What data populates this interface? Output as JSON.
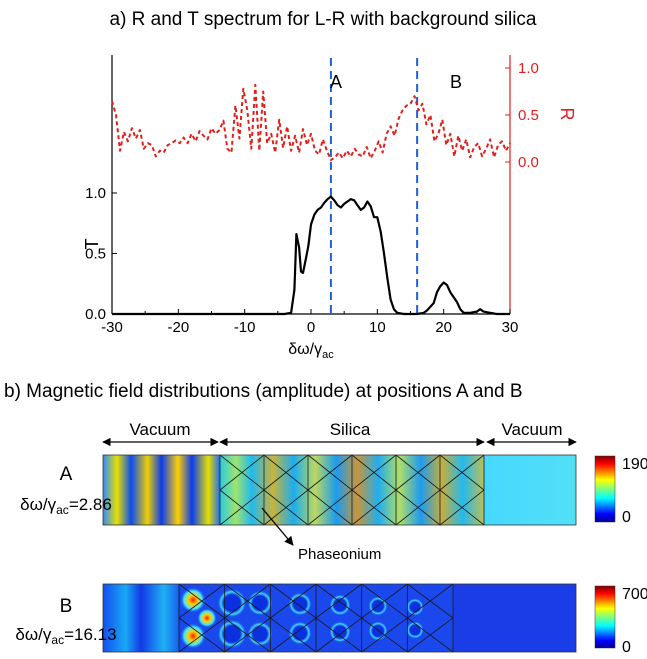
{
  "panel_a": {
    "title": "a) R and T spectrum for L-R with background silica",
    "marker_labels": [
      "A",
      "B"
    ],
    "chart_data": {
      "type": "line",
      "xlabel": "δω/γ",
      "xlabel_sub": "ac",
      "xlim": [
        -30,
        30
      ],
      "x_ticks": [
        "-30",
        "-20",
        "-10",
        "0",
        "10",
        "20",
        "30"
      ],
      "left_axis": {
        "label": "T",
        "ylim": [
          0,
          1.25
        ],
        "ticks": [
          "0.0",
          "0.5",
          "1.0"
        ],
        "color": "#000000"
      },
      "right_axis": {
        "label": "R",
        "ylim": [
          0,
          1
        ],
        "ticks": [
          "0.0",
          "0.5",
          "1.0"
        ],
        "color": "#e0201b"
      },
      "markers": [
        {
          "label": "A",
          "x": 3,
          "color": "#1f5fd6"
        },
        {
          "label": "B",
          "x": 16,
          "color": "#1f5fd6"
        }
      ],
      "series": [
        {
          "axis": "right",
          "color": "#e0201b",
          "style": "dashed",
          "x": [
            -30,
            -29.4,
            -28.8,
            -28.2,
            -27.6,
            -27.0,
            -26.4,
            -25.8,
            -25.2,
            -24.6,
            -24.0,
            -23.4,
            -22.8,
            -22.2,
            -21.6,
            -21.0,
            -20.4,
            -19.8,
            -19.2,
            -18.6,
            -18.0,
            -17.4,
            -16.8,
            -16.2,
            -15.6,
            -15.0,
            -14.4,
            -13.8,
            -13.2,
            -12.6,
            -12.0,
            -11.4,
            -10.8,
            -10.2,
            -9.6,
            -9.0,
            -8.4,
            -7.8,
            -7.2,
            -6.6,
            -6.0,
            -5.4,
            -4.8,
            -4.2,
            -3.6,
            -3.0,
            -2.4,
            -1.8,
            -1.2,
            -0.6,
            0,
            0.6,
            1.2,
            1.8,
            2.4,
            3.0,
            3.6,
            4.2,
            4.8,
            5.4,
            6.0,
            6.6,
            7.2,
            7.8,
            8.4,
            9.0,
            9.6,
            10.2,
            10.8,
            11.4,
            12.0,
            12.6,
            13.2,
            13.8,
            14.4,
            15.0,
            15.6,
            16.2,
            16.8,
            17.4,
            18.0,
            18.6,
            19.2,
            19.8,
            20.4,
            21.0,
            21.6,
            22.2,
            22.8,
            23.4,
            24.0,
            24.6,
            25.2,
            25.8,
            26.4,
            27.0,
            27.6,
            28.2,
            28.8,
            29.4,
            30
          ],
          "y": [
            0.65,
            0.5,
            0.12,
            0.32,
            0.22,
            0.36,
            0.25,
            0.34,
            0.14,
            0.2,
            0.18,
            0.06,
            0.12,
            0.1,
            0.18,
            0.2,
            0.23,
            0.2,
            0.26,
            0.2,
            0.3,
            0.22,
            0.33,
            0.28,
            0.24,
            0.36,
            0.3,
            0.34,
            0.44,
            0.14,
            0.1,
            0.6,
            0.25,
            0.78,
            0.55,
            0.14,
            0.82,
            0.12,
            0.75,
            0.2,
            0.3,
            0.1,
            0.45,
            0.15,
            0.38,
            0.12,
            0.28,
            0.1,
            0.35,
            0.18,
            0.3,
            0.12,
            0.08,
            0.24,
            0.12,
            0.02,
            0.05,
            0.1,
            0.04,
            0.12,
            0.06,
            0.14,
            0.08,
            0.06,
            0.16,
            0.04,
            0.12,
            0.22,
            0.1,
            0.3,
            0.38,
            0.28,
            0.46,
            0.55,
            0.6,
            0.62,
            0.7,
            0.55,
            0.62,
            0.4,
            0.5,
            0.22,
            0.3,
            0.45,
            0.18,
            0.3,
            0.06,
            0.28,
            0.12,
            0.24,
            0.05,
            0.16,
            0.2,
            0.06,
            0.14,
            0.24,
            0.05,
            0.18,
            0.22,
            0.12,
            0.2
          ]
        },
        {
          "axis": "left",
          "color": "#000000",
          "style": "solid",
          "x": [
            -30,
            -20,
            -10,
            -4,
            -3,
            -2.5,
            -2.2,
            -1.8,
            -1.5,
            -1.2,
            -0.8,
            -0.4,
            0,
            0.5,
            1,
            1.5,
            2,
            2.5,
            3,
            3.5,
            4,
            4.5,
            5,
            5.5,
            6,
            6.5,
            7,
            7.5,
            8,
            8.5,
            9,
            9.5,
            10,
            10.5,
            11,
            11.5,
            12,
            12.5,
            13,
            14,
            15,
            16,
            17,
            17.5,
            18,
            18.5,
            19,
            19.5,
            20,
            20.5,
            21,
            21.5,
            22,
            22.5,
            23,
            24,
            25,
            25.5,
            26,
            27,
            28,
            30
          ],
          "y": [
            0,
            0,
            0,
            0,
            0.01,
            0.2,
            0.66,
            0.55,
            0.35,
            0.34,
            0.45,
            0.56,
            0.74,
            0.82,
            0.86,
            0.88,
            0.92,
            0.95,
            0.97,
            0.94,
            0.9,
            0.88,
            0.91,
            0.93,
            0.95,
            0.94,
            0.9,
            0.86,
            0.88,
            0.93,
            0.89,
            0.8,
            0.8,
            0.68,
            0.5,
            0.3,
            0.12,
            0.04,
            0.01,
            0,
            0,
            0,
            0.01,
            0.03,
            0.06,
            0.09,
            0.18,
            0.23,
            0.26,
            0.24,
            0.18,
            0.14,
            0.1,
            0.04,
            0.01,
            0.01,
            0.02,
            0.04,
            0.02,
            0.01,
            0,
            0
          ]
        }
      ]
    }
  },
  "panel_b": {
    "title": "b) Magnetic field distributions (amplitude) at positions A and B",
    "region_labels": [
      "Vacuum",
      "Silica",
      "Vacuum"
    ],
    "annotation": "Phaseonium",
    "rows": [
      {
        "label": "A",
        "freq_prefix": "δω/γ",
        "freq_sub": "ac",
        "freq_value": "=2.86",
        "scale_max": "190",
        "scale_min": "0"
      },
      {
        "label": "B",
        "freq_prefix": "δω/γ",
        "freq_sub": "ac",
        "freq_value": "=16.13",
        "scale_max": "700",
        "scale_min": "0"
      }
    ]
  }
}
